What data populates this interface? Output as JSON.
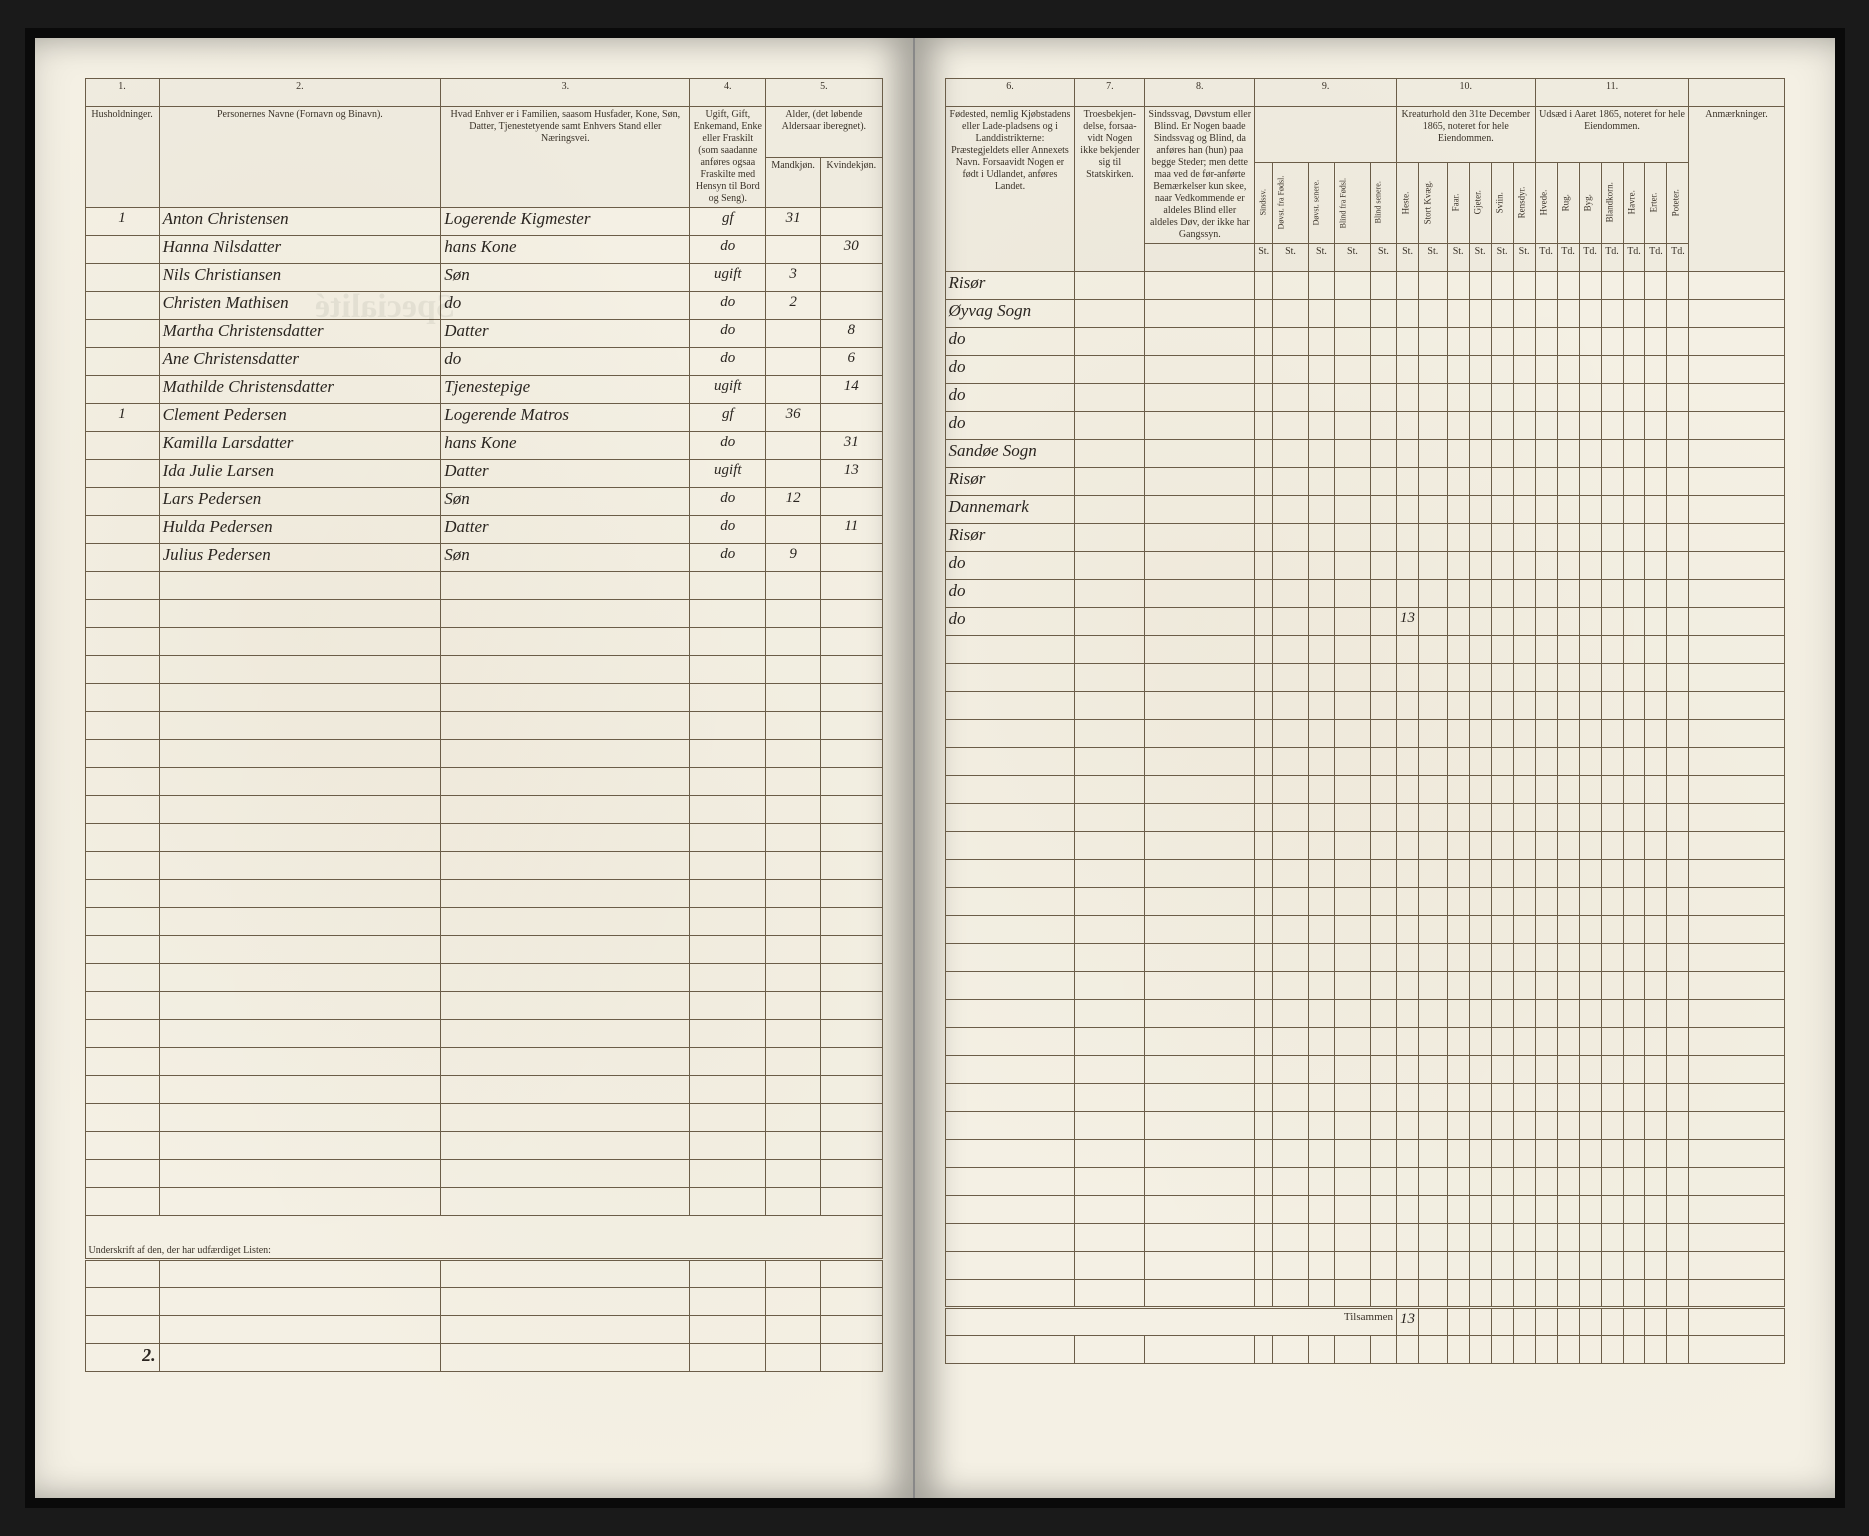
{
  "left": {
    "colNums": {
      "c1": "1.",
      "c2": "2.",
      "c3": "3.",
      "c4": "4.",
      "c5": "5."
    },
    "headers": {
      "c1": "Husholdninger.",
      "c2": "Personernes Navne (Fornavn og Binavn).",
      "c3": "Hvad Enhver er i Familien, saasom Husfader, Kone, Søn, Datter, Tjenestetyende samt Enhvers Stand eller Næringsvei.",
      "c4": "Ugift, Gift, Enkemand, Enke eller Fraskilt (som saadanne anføres ogsaa Fraskilte med Hensyn til Bord og Seng).",
      "c5": "Alder, (det løbende Aldersaar iberegnet).",
      "c5a": "Mandkjøn.",
      "c5b": "Kvindekjøn."
    },
    "rows": [
      {
        "hh": "1",
        "name": "Anton Christensen",
        "rel": "Logerende Kigmester",
        "stat": "gf",
        "m": "31",
        "f": ""
      },
      {
        "hh": "",
        "name": "Hanna Nilsdatter",
        "rel": "hans Kone",
        "stat": "do",
        "m": "",
        "f": "30"
      },
      {
        "hh": "",
        "name": "Nils Christiansen",
        "rel": "    Søn",
        "stat": "ugift",
        "m": "3",
        "f": ""
      },
      {
        "hh": "",
        "name": "Christen Mathisen",
        "rel": "    do",
        "stat": "do",
        "m": "2",
        "f": ""
      },
      {
        "hh": "",
        "name": "Martha Christensdatter",
        "rel": "    Datter",
        "stat": "do",
        "m": "",
        "f": "8"
      },
      {
        "hh": "",
        "name": "Ane Christensdatter",
        "rel": "    do",
        "stat": "do",
        "m": "",
        "f": "6"
      },
      {
        "hh": "",
        "name": "Mathilde Christensdatter",
        "rel": "Tjenestepige",
        "stat": "ugift",
        "m": "",
        "f": "14"
      },
      {
        "hh": "1",
        "name": "Clement Pedersen",
        "rel": "Logerende Matros",
        "stat": "gf",
        "m": "36",
        "f": ""
      },
      {
        "hh": "",
        "name": "Kamilla Larsdatter",
        "rel": "hans Kone",
        "stat": "do",
        "m": "",
        "f": "31"
      },
      {
        "hh": "",
        "name": "Ida Julie Larsen",
        "rel": "    Datter",
        "stat": "ugift",
        "m": "",
        "f": "13"
      },
      {
        "hh": "",
        "name": "Lars Pedersen",
        "rel": "    Søn",
        "stat": "do",
        "m": "12",
        "f": ""
      },
      {
        "hh": "",
        "name": "Hulda Pedersen",
        "rel": "    Datter",
        "stat": "do",
        "m": "",
        "f": "11"
      },
      {
        "hh": "",
        "name": "Julius Pedersen",
        "rel": "    Søn",
        "stat": "do",
        "m": "9",
        "f": ""
      }
    ],
    "footerHH": "2.",
    "footerNote": "Underskrift af den, der har udfærdiget Listen:"
  },
  "right": {
    "colNums": {
      "c6": "6.",
      "c7": "7.",
      "c8": "8.",
      "c9": "9.",
      "c10": "10.",
      "c11": "11.",
      "c12": ""
    },
    "headers": {
      "c6": "Fødested, nemlig Kjøbstadens eller Lade-pladsens og i Landdistrikterne: Præstegjeldets eller Annexets Navn. Forsaavidt Nogen er født i Udlandet, anføres Landet.",
      "c7": "Troesbekjen-delse, forsaa-vidt Nogen ikke bekjender sig til Statskirken.",
      "c8": "Sindssvag, Døvstum eller Blind. Er Nogen baade Sindssvag og Blind, da anføres han (hun) paa begge Steder; men dette maa ved de før-anførte Bemærkelser kun skee, naar Vedkommende er aldeles Blind eller aldeles Døv, der ikke har Gangssyn.",
      "c9a": "Sindssv.",
      "c9b": "Døvst. fra Fødsl.",
      "c9c": "Døvst. senere.",
      "c9d": "Blind fra Fødsl.",
      "c9e": "Blind senere.",
      "c10": "Kreaturhold den 31te December 1865, noteret for hele Eiendommen.",
      "c10a": "Heste.",
      "c10b": "Stort Kvæg.",
      "c10c": "Faar.",
      "c10d": "Gjeter.",
      "c10e": "Sviin.",
      "c10f": "Rensdyr.",
      "c11": "Udsæd i Aaret 1865, noteret for hele Eiendommen.",
      "c11a": "Hvede.",
      "c11b": "Rug.",
      "c11c": "Byg.",
      "c11d": "Blandkorn.",
      "c11e": "Havre.",
      "c11f": "Erter.",
      "c11g": "Poteter.",
      "c12": "Anmærkninger."
    },
    "tdUnit": "Td.",
    "rows": [
      {
        "place": "Risør",
        "col10c": ""
      },
      {
        "place": "Øyvag Sogn"
      },
      {
        "place": "   do"
      },
      {
        "place": "   do"
      },
      {
        "place": "   do"
      },
      {
        "place": "   do"
      },
      {
        "place": "Sandøe Sogn"
      },
      {
        "place": "Risør"
      },
      {
        "place": "Dannemark"
      },
      {
        "place": "Risør"
      },
      {
        "place": "   do"
      },
      {
        "place": "   do"
      },
      {
        "place": "   do",
        "total": "13"
      }
    ],
    "tilsammenLabel": "Tilsammen",
    "tilsammenValue": "13"
  },
  "style": {
    "pageBg": "#f4f0e4",
    "ink": "#2a2520",
    "ruleColor": "#6b5d48"
  }
}
